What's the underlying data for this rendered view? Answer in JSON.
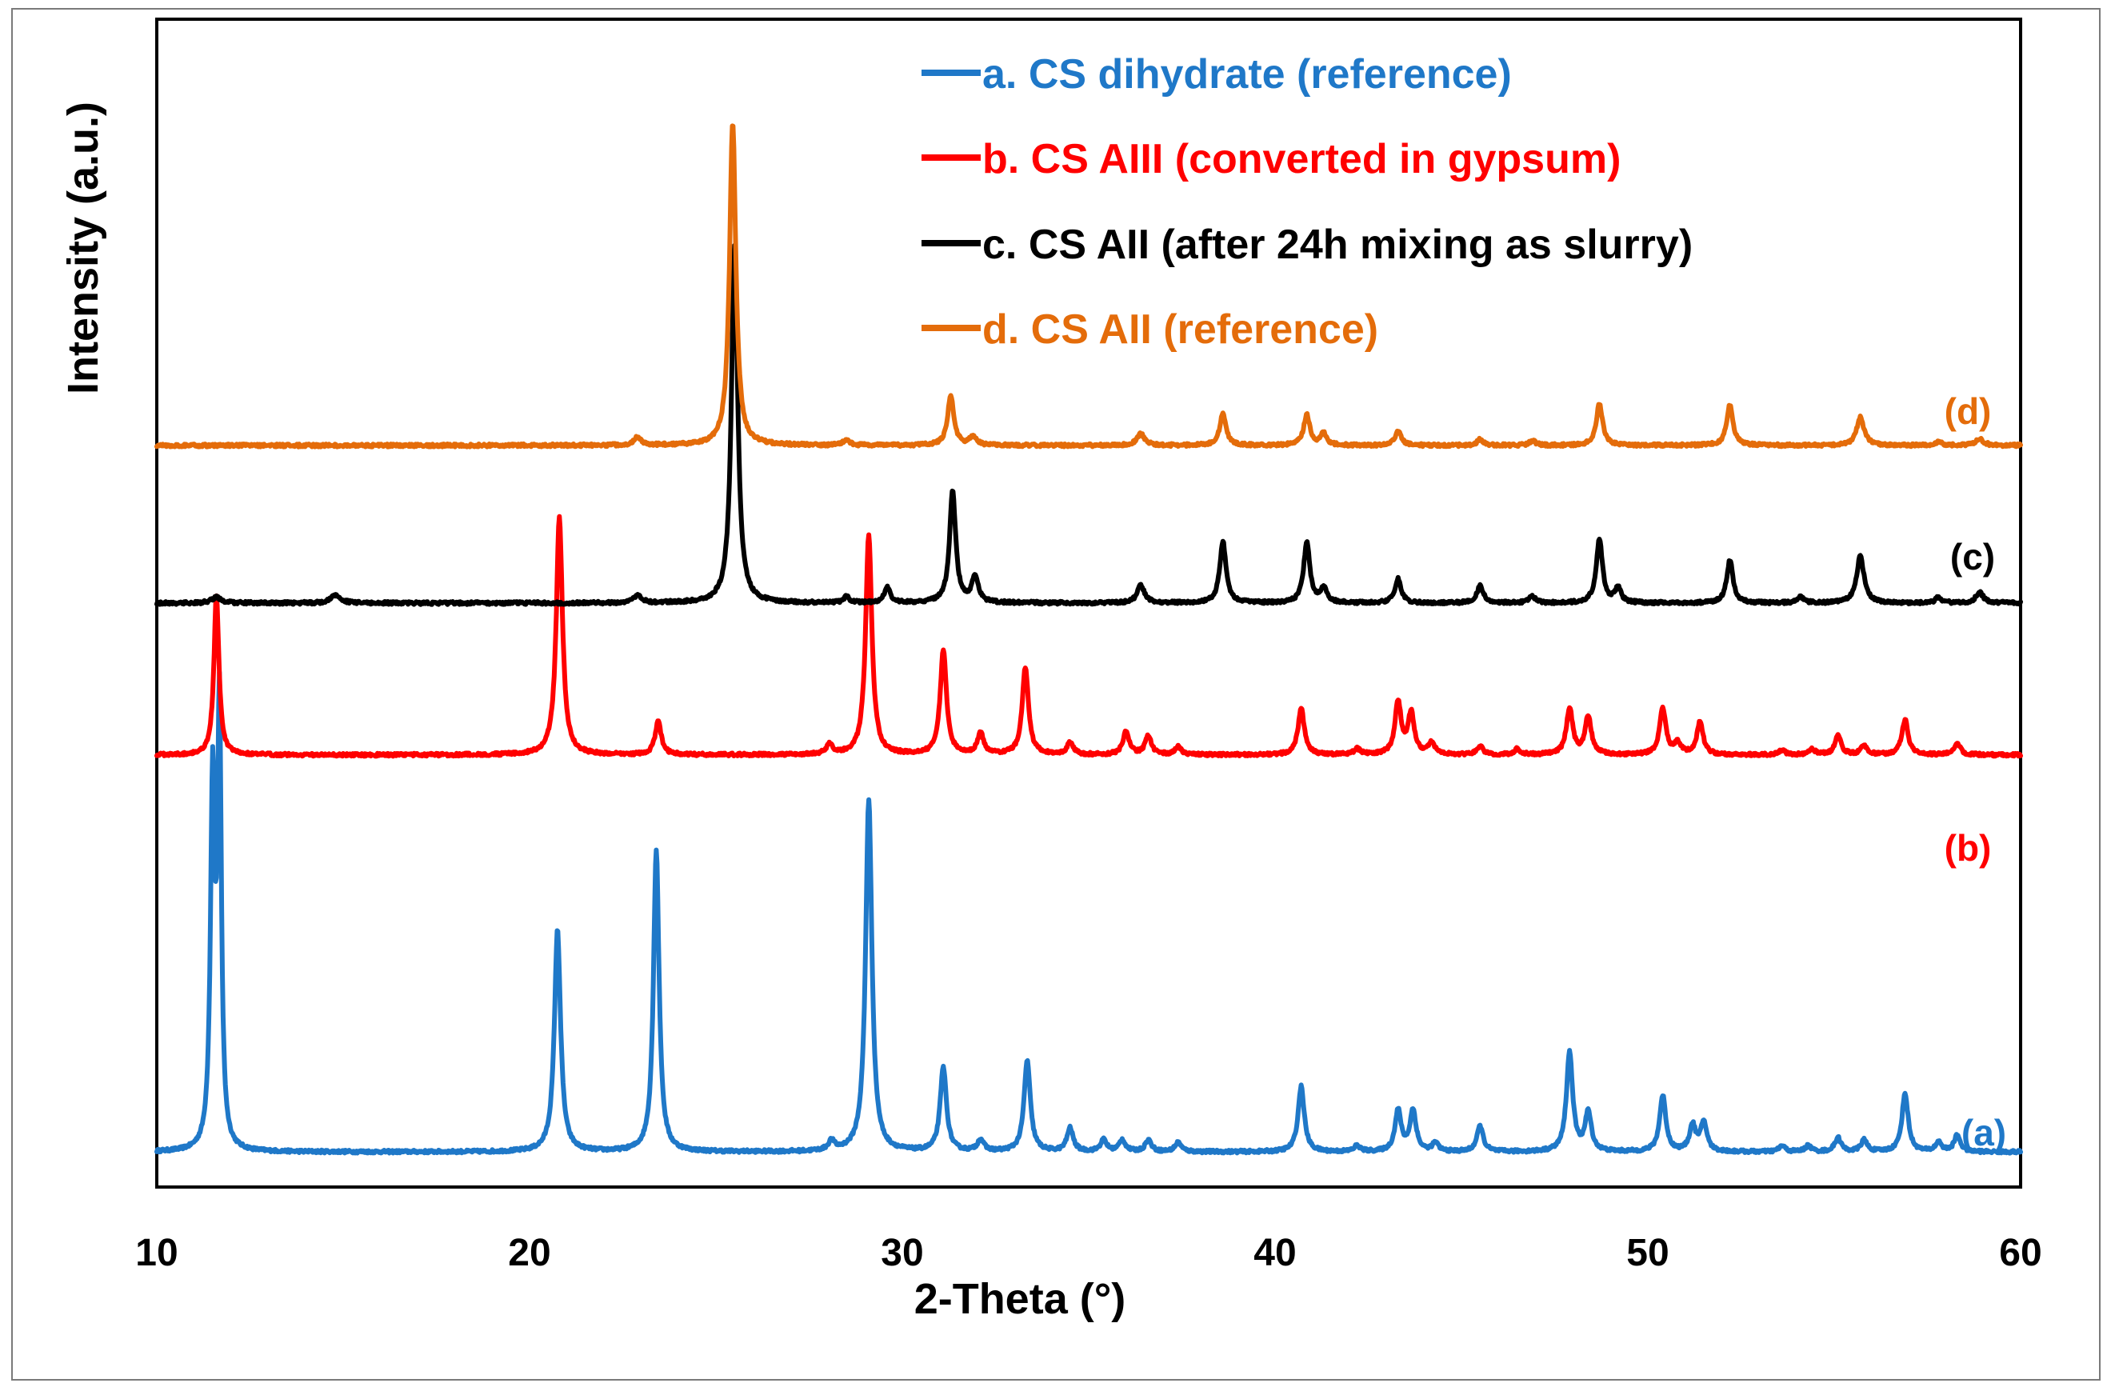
{
  "chart_data": {
    "type": "line",
    "title": "",
    "xlabel": "2-Theta (°)",
    "ylabel": "Intensity (a.u.)",
    "xlim": [
      10,
      60
    ],
    "x_ticks": [
      10,
      20,
      30,
      40,
      50,
      60
    ],
    "y_ticks": [],
    "grid": false,
    "legend_position": "top-right",
    "series": [
      {
        "id": "a",
        "name": "a. CS dihydrate (reference)",
        "tag": "(a)",
        "color": "#1F78C8",
        "baseline": 0.03,
        "noise": 0.0025,
        "peaks": [
          {
            "x": 11.5,
            "h": 0.31,
            "w": 0.07
          },
          {
            "x": 11.68,
            "h": 0.37,
            "w": 0.06
          },
          {
            "x": 20.75,
            "h": 0.19,
            "w": 0.1
          },
          {
            "x": 23.4,
            "h": 0.259,
            "w": 0.09
          },
          {
            "x": 28.1,
            "h": 0.008,
            "w": 0.1
          },
          {
            "x": 29.1,
            "h": 0.302,
            "w": 0.1
          },
          {
            "x": 31.1,
            "h": 0.072,
            "w": 0.1
          },
          {
            "x": 32.1,
            "h": 0.01,
            "w": 0.1
          },
          {
            "x": 33.35,
            "h": 0.078,
            "w": 0.1
          },
          {
            "x": 34.5,
            "h": 0.02,
            "w": 0.1
          },
          {
            "x": 35.4,
            "h": 0.01,
            "w": 0.1
          },
          {
            "x": 35.9,
            "h": 0.01,
            "w": 0.1
          },
          {
            "x": 36.6,
            "h": 0.01,
            "w": 0.1
          },
          {
            "x": 37.4,
            "h": 0.008,
            "w": 0.1
          },
          {
            "x": 40.7,
            "h": 0.056,
            "w": 0.1
          },
          {
            "x": 42.2,
            "h": 0.005,
            "w": 0.1
          },
          {
            "x": 43.3,
            "h": 0.035,
            "w": 0.1
          },
          {
            "x": 43.7,
            "h": 0.035,
            "w": 0.1
          },
          {
            "x": 44.3,
            "h": 0.007,
            "w": 0.1
          },
          {
            "x": 45.5,
            "h": 0.022,
            "w": 0.1
          },
          {
            "x": 47.9,
            "h": 0.085,
            "w": 0.1
          },
          {
            "x": 48.4,
            "h": 0.033,
            "w": 0.1
          },
          {
            "x": 50.4,
            "h": 0.048,
            "w": 0.1
          },
          {
            "x": 51.2,
            "h": 0.022,
            "w": 0.1
          },
          {
            "x": 51.5,
            "h": 0.025,
            "w": 0.1
          },
          {
            "x": 53.6,
            "h": 0.005,
            "w": 0.1
          },
          {
            "x": 54.3,
            "h": 0.005,
            "w": 0.1
          },
          {
            "x": 55.1,
            "h": 0.012,
            "w": 0.1
          },
          {
            "x": 55.8,
            "h": 0.01,
            "w": 0.1
          },
          {
            "x": 56.9,
            "h": 0.05,
            "w": 0.1
          },
          {
            "x": 57.8,
            "h": 0.008,
            "w": 0.1
          },
          {
            "x": 58.3,
            "h": 0.014,
            "w": 0.1
          }
        ]
      },
      {
        "id": "b",
        "name": "b. CS AIII (converted in gypsum)",
        "tag": "(b)",
        "color": "#FF0000",
        "baseline": 0.37,
        "noise": 0.0025,
        "peaks": [
          {
            "x": 11.6,
            "h": 0.137,
            "w": 0.08
          },
          {
            "x": 20.8,
            "h": 0.203,
            "w": 0.1
          },
          {
            "x": 23.45,
            "h": 0.028,
            "w": 0.1
          },
          {
            "x": 28.05,
            "h": 0.008,
            "w": 0.1
          },
          {
            "x": 29.1,
            "h": 0.188,
            "w": 0.1
          },
          {
            "x": 31.1,
            "h": 0.09,
            "w": 0.1
          },
          {
            "x": 32.1,
            "h": 0.018,
            "w": 0.1
          },
          {
            "x": 33.3,
            "h": 0.075,
            "w": 0.1
          },
          {
            "x": 34.5,
            "h": 0.01,
            "w": 0.1
          },
          {
            "x": 36.0,
            "h": 0.02,
            "w": 0.1
          },
          {
            "x": 36.6,
            "h": 0.016,
            "w": 0.1
          },
          {
            "x": 37.4,
            "h": 0.007,
            "w": 0.1
          },
          {
            "x": 40.7,
            "h": 0.04,
            "w": 0.1
          },
          {
            "x": 42.2,
            "h": 0.005,
            "w": 0.1
          },
          {
            "x": 43.3,
            "h": 0.045,
            "w": 0.1
          },
          {
            "x": 43.65,
            "h": 0.035,
            "w": 0.1
          },
          {
            "x": 44.2,
            "h": 0.01,
            "w": 0.1
          },
          {
            "x": 45.5,
            "h": 0.007,
            "w": 0.1
          },
          {
            "x": 46.5,
            "h": 0.005,
            "w": 0.1
          },
          {
            "x": 47.9,
            "h": 0.04,
            "w": 0.1
          },
          {
            "x": 48.4,
            "h": 0.033,
            "w": 0.1
          },
          {
            "x": 50.4,
            "h": 0.04,
            "w": 0.1
          },
          {
            "x": 50.8,
            "h": 0.01,
            "w": 0.1
          },
          {
            "x": 51.4,
            "h": 0.028,
            "w": 0.1
          },
          {
            "x": 53.6,
            "h": 0.004,
            "w": 0.1
          },
          {
            "x": 54.4,
            "h": 0.005,
            "w": 0.1
          },
          {
            "x": 55.1,
            "h": 0.016,
            "w": 0.1
          },
          {
            "x": 55.8,
            "h": 0.008,
            "w": 0.1
          },
          {
            "x": 56.9,
            "h": 0.03,
            "w": 0.1
          },
          {
            "x": 58.3,
            "h": 0.01,
            "w": 0.1
          }
        ]
      },
      {
        "id": "c",
        "name": "c. CS AII (after 24h mixing as slurry)",
        "tag": "(c)",
        "color": "#000000",
        "baseline": 0.5,
        "noise": 0.0025,
        "peaks": [
          {
            "x": 11.6,
            "h": 0.005,
            "w": 0.15
          },
          {
            "x": 14.8,
            "h": 0.007,
            "w": 0.15
          },
          {
            "x": 22.9,
            "h": 0.007,
            "w": 0.12
          },
          {
            "x": 25.5,
            "h": 0.307,
            "w": 0.1
          },
          {
            "x": 28.5,
            "h": 0.005,
            "w": 0.1
          },
          {
            "x": 29.6,
            "h": 0.013,
            "w": 0.1
          },
          {
            "x": 31.35,
            "h": 0.095,
            "w": 0.1
          },
          {
            "x": 31.95,
            "h": 0.023,
            "w": 0.1
          },
          {
            "x": 36.4,
            "h": 0.015,
            "w": 0.12
          },
          {
            "x": 38.6,
            "h": 0.053,
            "w": 0.1
          },
          {
            "x": 40.85,
            "h": 0.052,
            "w": 0.1
          },
          {
            "x": 41.3,
            "h": 0.013,
            "w": 0.1
          },
          {
            "x": 43.3,
            "h": 0.021,
            "w": 0.1
          },
          {
            "x": 45.5,
            "h": 0.015,
            "w": 0.1
          },
          {
            "x": 46.9,
            "h": 0.006,
            "w": 0.1
          },
          {
            "x": 48.7,
            "h": 0.055,
            "w": 0.1
          },
          {
            "x": 49.2,
            "h": 0.012,
            "w": 0.1
          },
          {
            "x": 52.2,
            "h": 0.037,
            "w": 0.1
          },
          {
            "x": 54.1,
            "h": 0.005,
            "w": 0.1
          },
          {
            "x": 55.7,
            "h": 0.04,
            "w": 0.12
          },
          {
            "x": 57.8,
            "h": 0.005,
            "w": 0.1
          },
          {
            "x": 58.9,
            "h": 0.009,
            "w": 0.12
          }
        ]
      },
      {
        "id": "d",
        "name": "d. CS AII (reference)",
        "tag": "(d)",
        "color": "#E46C0A",
        "baseline": 0.635,
        "noise": 0.0025,
        "peaks": [
          {
            "x": 22.9,
            "h": 0.007,
            "w": 0.12
          },
          {
            "x": 25.45,
            "h": 0.277,
            "w": 0.1
          },
          {
            "x": 28.5,
            "h": 0.005,
            "w": 0.1
          },
          {
            "x": 31.3,
            "h": 0.043,
            "w": 0.1
          },
          {
            "x": 31.9,
            "h": 0.008,
            "w": 0.1
          },
          {
            "x": 36.4,
            "h": 0.01,
            "w": 0.12
          },
          {
            "x": 38.6,
            "h": 0.027,
            "w": 0.1
          },
          {
            "x": 40.85,
            "h": 0.026,
            "w": 0.1
          },
          {
            "x": 41.3,
            "h": 0.01,
            "w": 0.1
          },
          {
            "x": 43.3,
            "h": 0.012,
            "w": 0.1
          },
          {
            "x": 45.5,
            "h": 0.005,
            "w": 0.1
          },
          {
            "x": 46.9,
            "h": 0.004,
            "w": 0.1
          },
          {
            "x": 48.7,
            "h": 0.036,
            "w": 0.1
          },
          {
            "x": 52.2,
            "h": 0.035,
            "w": 0.1
          },
          {
            "x": 55.7,
            "h": 0.024,
            "w": 0.12
          },
          {
            "x": 57.8,
            "h": 0.003,
            "w": 0.1
          },
          {
            "x": 58.9,
            "h": 0.006,
            "w": 0.12
          }
        ]
      }
    ]
  }
}
